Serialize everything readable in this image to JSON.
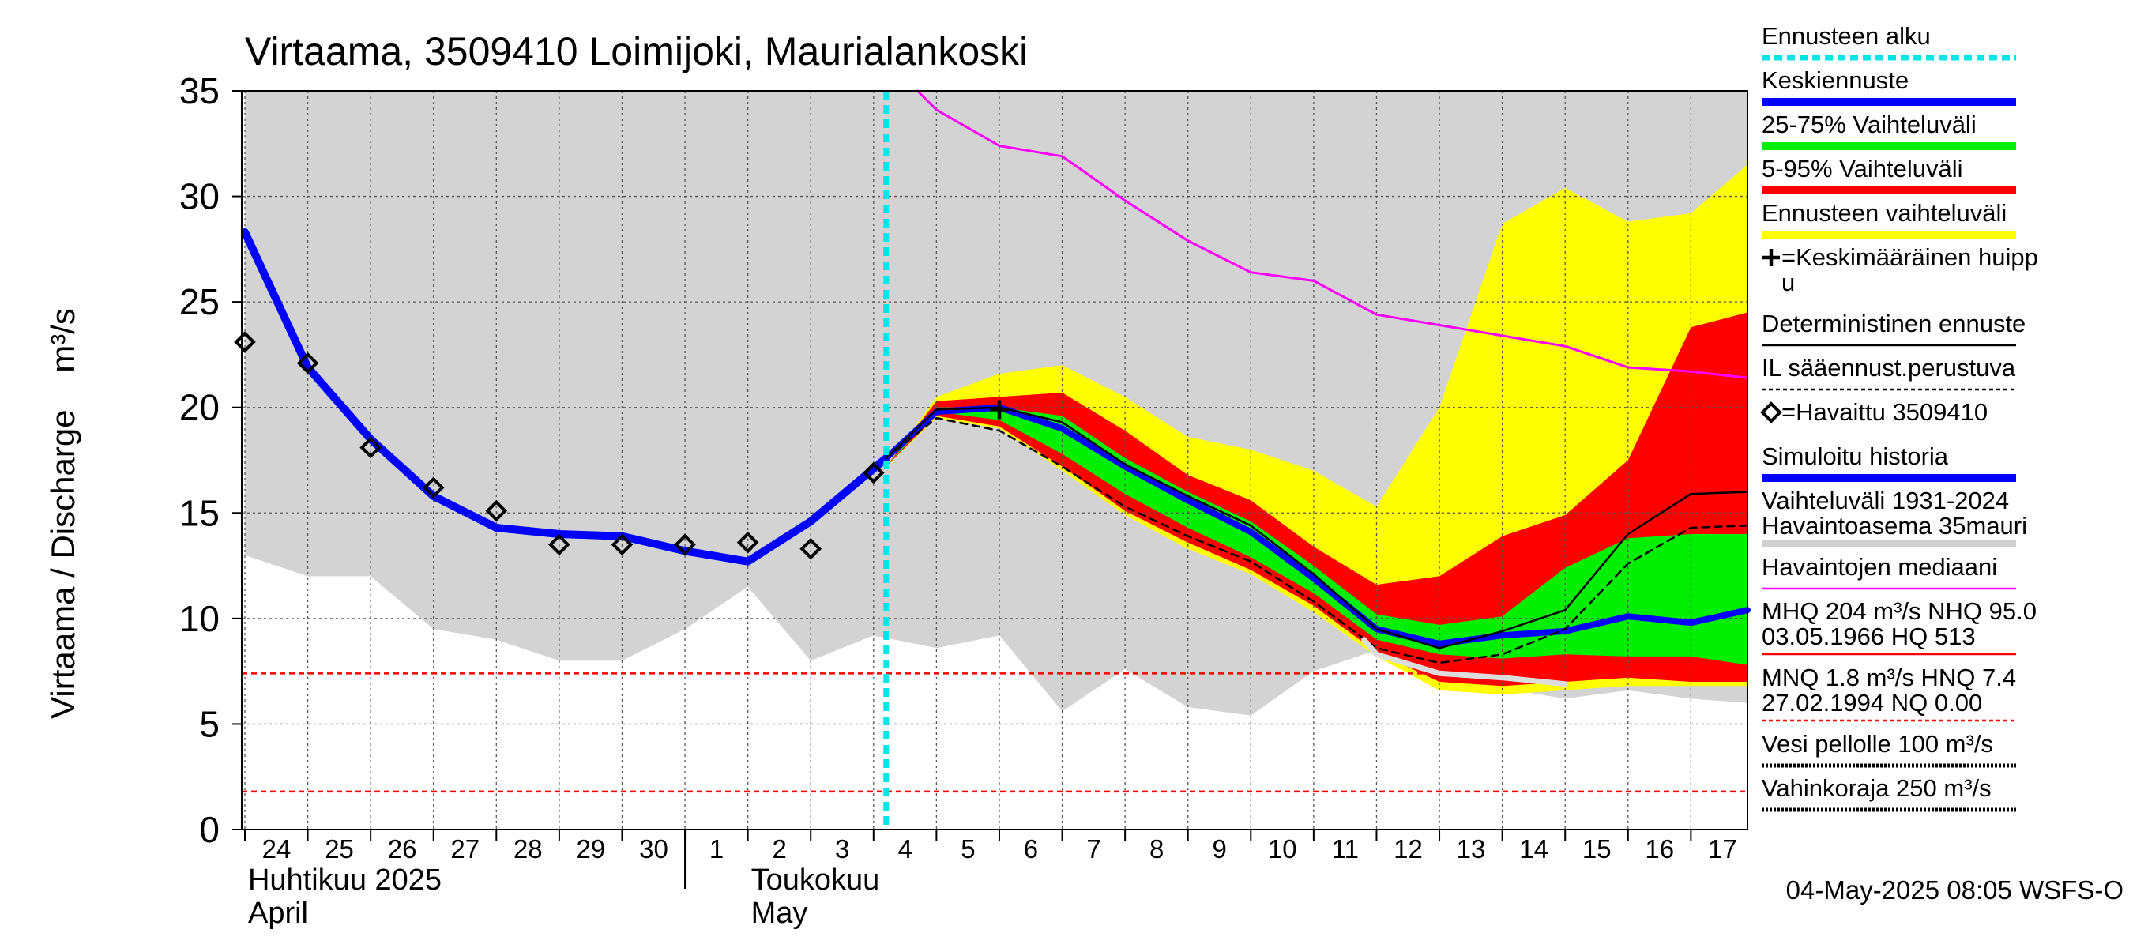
{
  "chart_data": {
    "type": "area",
    "title": "Virtaama, 3509410 Loimijoki, Maurialankoski",
    "ylabel": "Virtaama / Discharge    m³/s",
    "ylim": [
      0,
      35
    ],
    "xlim": [
      -0.05,
      23.9
    ],
    "y_ticks": [
      0,
      5,
      10,
      15,
      20,
      25,
      30,
      35
    ],
    "day_labels": [
      "24",
      "25",
      "26",
      "27",
      "28",
      "29",
      "30",
      "1",
      "2",
      "3",
      "4",
      "5",
      "6",
      "7",
      "8",
      "9",
      "10",
      "11",
      "12",
      "13",
      "14",
      "15",
      "16",
      "17"
    ],
    "month_labels": [
      {
        "line1": "Huhtikuu  2025",
        "line2": "April",
        "x": 0
      },
      {
        "line1": "Toukokuu",
        "line2": "May",
        "x": 8
      }
    ],
    "month_separator_x": 7,
    "forecast_start_x": 10.2,
    "timestamp": "04-May-2025 08:05 WSFS-O",
    "historical_range": {
      "x": [
        0,
        1,
        2,
        3,
        4,
        5,
        6,
        7,
        8,
        9,
        10,
        11,
        12,
        13,
        14,
        15,
        16,
        17,
        18,
        19,
        20,
        21,
        22,
        23,
        23.9
      ],
      "lower": [
        13.0,
        12.0,
        12.0,
        9.5,
        9.0,
        8.0,
        8.0,
        9.5,
        11.5,
        8.0,
        9.2,
        8.6,
        9.2,
        5.6,
        7.6,
        5.8,
        5.4,
        7.5,
        8.5,
        7.0,
        6.7,
        6.2,
        6.6,
        6.2,
        6.0
      ],
      "upper": [
        35,
        35,
        35,
        35,
        35,
        35,
        35,
        35,
        35,
        35,
        35,
        35,
        35,
        35,
        35,
        35,
        35,
        35,
        35,
        35,
        35,
        35,
        35,
        35,
        35
      ]
    },
    "forecast_bands": {
      "x": [
        10.2,
        11,
        12,
        13,
        14,
        15,
        16,
        17,
        18,
        19,
        20,
        21,
        22,
        23,
        23.9
      ],
      "range_lower": [
        17.2,
        19.5,
        19.0,
        17.0,
        14.9,
        13.3,
        12.1,
        10.3,
        8.2,
        6.6,
        6.4,
        6.6,
        6.8,
        6.8,
        6.8
      ],
      "range_upper": [
        17.2,
        20.5,
        21.6,
        22.0,
        20.5,
        18.6,
        18.0,
        17.0,
        15.3,
        20.0,
        28.7,
        30.4,
        28.8,
        29.2,
        31.5
      ],
      "p5": [
        17.2,
        19.6,
        19.1,
        17.2,
        15.1,
        13.6,
        12.3,
        10.6,
        8.4,
        7.0,
        6.8,
        7.0,
        7.2,
        7.0,
        7.0
      ],
      "p95": [
        17.2,
        20.3,
        20.5,
        20.7,
        18.9,
        16.8,
        15.6,
        13.4,
        11.6,
        12.0,
        13.9,
        14.9,
        17.5,
        23.8,
        24.5
      ],
      "p25": [
        17.2,
        19.8,
        19.4,
        17.8,
        15.9,
        14.3,
        12.9,
        11.2,
        9.0,
        8.3,
        8.1,
        8.3,
        8.2,
        8.2,
        7.8
      ],
      "p75": [
        17.2,
        20.0,
        20.0,
        19.6,
        17.6,
        16.0,
        14.6,
        12.5,
        10.2,
        9.7,
        10.1,
        12.4,
        13.8,
        14.0,
        14.0
      ]
    },
    "series": [
      {
        "id": "simulated",
        "color": "#0000ff",
        "width": 10,
        "x": [
          0,
          1,
          2,
          3,
          4,
          5,
          6,
          7,
          8,
          9,
          10.2
        ],
        "y": [
          28.3,
          21.9,
          18.5,
          15.8,
          14.3,
          14.0,
          13.9,
          13.2,
          12.7,
          14.6,
          17.6
        ]
      },
      {
        "id": "mean_forecast",
        "color": "#0000ff",
        "width": 8,
        "x": [
          10.2,
          11,
          12,
          13,
          14,
          15,
          16,
          17,
          18,
          19,
          20,
          21,
          22,
          23,
          23.9
        ],
        "y": [
          17.6,
          19.8,
          20.0,
          19.0,
          17.2,
          15.6,
          14.1,
          11.9,
          9.5,
          8.8,
          9.2,
          9.4,
          10.1,
          9.8,
          10.4
        ]
      },
      {
        "id": "deterministic",
        "color": "#000000",
        "width": 2.5,
        "x": [
          10.2,
          11,
          12,
          13,
          14,
          15,
          16,
          17,
          18,
          19,
          20,
          21,
          22,
          23,
          23.9
        ],
        "y": [
          17.6,
          19.9,
          20.0,
          19.3,
          17.3,
          15.8,
          14.4,
          12.1,
          9.5,
          8.6,
          9.4,
          10.4,
          14.0,
          15.9,
          16.0
        ]
      },
      {
        "id": "il_weather",
        "color": "#000000",
        "width": 2.5,
        "dash": "9,7",
        "x": [
          10.2,
          11,
          12,
          13,
          14,
          15,
          16,
          17,
          18,
          19,
          20,
          21,
          22,
          23,
          23.9
        ],
        "y": [
          17.6,
          19.5,
          18.9,
          17.2,
          15.3,
          13.9,
          12.7,
          10.8,
          8.6,
          7.9,
          8.3,
          9.5,
          12.6,
          14.3,
          14.4
        ]
      },
      {
        "id": "median",
        "color": "#ff00ff",
        "width": 3,
        "x": [
          10.7,
          11,
          12,
          13,
          14,
          15,
          16,
          17,
          18,
          19,
          20,
          21,
          22,
          23,
          23.9
        ],
        "y": [
          35,
          34.1,
          32.4,
          31.9,
          29.8,
          27.9,
          26.4,
          26.0,
          24.4,
          23.9,
          23.4,
          22.9,
          21.9,
          21.7,
          21.4
        ]
      },
      {
        "id": "observed_recent",
        "color": "#dddddd",
        "width": 7,
        "x": [
          17.8,
          18,
          19,
          20,
          21
        ],
        "y": [
          9.0,
          8.3,
          7.4,
          7.2,
          6.9
        ]
      }
    ],
    "observed": {
      "x": [
        0,
        1,
        2,
        3,
        4,
        5,
        6,
        7,
        8,
        9,
        10
      ],
      "y": [
        23.1,
        22.1,
        18.1,
        16.2,
        15.1,
        13.5,
        13.5,
        13.5,
        13.6,
        13.3,
        16.9
      ]
    },
    "peak_marker": {
      "x": 12,
      "y": 19.9
    },
    "ref_lines": [
      7.4,
      1.8
    ],
    "legend": [
      {
        "text": "Ennusteen alku",
        "swatch": "dotted",
        "color": "#00e5e5"
      },
      {
        "text": "Keskiennuste",
        "swatch": "thick",
        "color": "#0000ff"
      },
      {
        "text": "25-75% Vaihteluväli",
        "swatch": "thick",
        "color": "#00ee00"
      },
      {
        "text": "5-95% Vaihteluväli",
        "swatch": "thick",
        "color": "#ff0000"
      },
      {
        "text": "Ennusteen vaihteluväli",
        "swatch": "thick",
        "color": "#ffff00"
      },
      {
        "text": "=Keskimääräinen huipp",
        "text2": "u",
        "icon": "plus"
      },
      {
        "text": "Deterministinen ennuste",
        "swatch": "thin",
        "color": "#000000"
      },
      {
        "text": "IL sääennust.perustuva",
        "swatch": "dashed",
        "color": "#000000"
      },
      {
        "text": "=Havaittu 3509410",
        "icon": "diamond"
      },
      {
        "text": "Simuloitu historia",
        "swatch": "thick",
        "color": "#0000ff"
      },
      {
        "text": "Vaihteluväli 1931-2024",
        "text2": " Havaintoasema 35mauri",
        "swatch": "thick",
        "color": "#d0d0d0"
      },
      {
        "text": "Havaintojen mediaani",
        "swatch": "thin",
        "color": "#ff00ff"
      },
      {
        "text": "MHQ  204 m³/s NHQ 95.0",
        "text2": "03.05.1966 HQ  513",
        "swatch": "thin",
        "color": "#ff0000"
      },
      {
        "text": "MNQ  1.8 m³/s HNQ  7.4",
        "text2": "27.02.1994 NQ 0.00",
        "swatch": "dashed",
        "color": "#ff0000"
      },
      {
        "text": "Vesi pellolle 100 m³/s",
        "swatch": "dotted",
        "color": "#000000"
      },
      {
        "text": "Vahinkoraja 250 m³/s",
        "swatch": "dotted",
        "color": "#000000"
      }
    ],
    "colors": {
      "hist_band": "#d3d3d3",
      "range_band": "#ffff00",
      "p5_95": "#ff0000",
      "p25_75": "#00ee00",
      "forecast_start": "#00e5e5",
      "ref_line": "#ff0000",
      "grid": "#555555"
    }
  }
}
